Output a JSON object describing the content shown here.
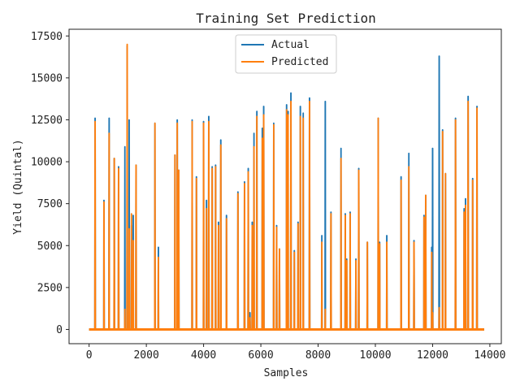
{
  "chart_data": {
    "type": "line",
    "title": "Training Set Prediction",
    "xlabel": "Samples",
    "ylabel": "Yield (Quintal)",
    "xlim": [
      -700,
      14400
    ],
    "ylim": [
      -850,
      17900
    ],
    "xticks": [
      0,
      2000,
      4000,
      6000,
      8000,
      10000,
      12000,
      14000
    ],
    "yticks": [
      0,
      2500,
      5000,
      7500,
      10000,
      12500,
      15000,
      17500
    ],
    "grid": false,
    "legend_placement": "top-center",
    "baseline": 0,
    "series": [
      {
        "name": "Actual",
        "color": "#1f77b4",
        "spikes": [
          [
            210,
            12600
          ],
          [
            520,
            7700
          ],
          [
            700,
            12600
          ],
          [
            880,
            10200
          ],
          [
            1030,
            9700
          ],
          [
            1250,
            10900
          ],
          [
            1330,
            16900
          ],
          [
            1400,
            12500
          ],
          [
            1480,
            6200
          ],
          [
            1540,
            6800
          ],
          [
            1640,
            9800
          ],
          [
            2300,
            12300
          ],
          [
            2420,
            4900
          ],
          [
            3000,
            10400
          ],
          [
            3080,
            12500
          ],
          [
            3130,
            9500
          ],
          [
            3600,
            12500
          ],
          [
            3750,
            9100
          ],
          [
            4000,
            12400
          ],
          [
            4100,
            7700
          ],
          [
            4180,
            12700
          ],
          [
            4300,
            9700
          ],
          [
            4420,
            9800
          ],
          [
            4520,
            6400
          ],
          [
            4600,
            11300
          ],
          [
            4800,
            6800
          ],
          [
            5200,
            8200
          ],
          [
            5430,
            8800
          ],
          [
            5560,
            9600
          ],
          [
            5620,
            1000
          ],
          [
            5700,
            6400
          ],
          [
            5760,
            11700
          ],
          [
            5860,
            13000
          ],
          [
            6050,
            12000
          ],
          [
            6100,
            13300
          ],
          [
            6450,
            12300
          ],
          [
            6550,
            6200
          ],
          [
            6650,
            4800
          ],
          [
            6900,
            13400
          ],
          [
            6950,
            13000
          ],
          [
            7050,
            14100
          ],
          [
            7170,
            4700
          ],
          [
            7300,
            6400
          ],
          [
            7380,
            13300
          ],
          [
            7480,
            12900
          ],
          [
            7700,
            13800
          ],
          [
            8130,
            5600
          ],
          [
            8250,
            13600
          ],
          [
            8450,
            7000
          ],
          [
            8800,
            10800
          ],
          [
            8950,
            6900
          ],
          [
            9000,
            4200
          ],
          [
            9120,
            7000
          ],
          [
            9320,
            4200
          ],
          [
            9420,
            9600
          ],
          [
            9720,
            5200
          ],
          [
            10100,
            12600
          ],
          [
            10150,
            5200
          ],
          [
            10400,
            5600
          ],
          [
            10900,
            9100
          ],
          [
            11170,
            10500
          ],
          [
            11350,
            5300
          ],
          [
            11700,
            6800
          ],
          [
            11760,
            8000
          ],
          [
            11970,
            4900
          ],
          [
            12000,
            10800
          ],
          [
            12230,
            16300
          ],
          [
            12350,
            11900
          ],
          [
            12450,
            9300
          ],
          [
            12800,
            12600
          ],
          [
            13100,
            7200
          ],
          [
            13150,
            7800
          ],
          [
            13240,
            13900
          ],
          [
            13400,
            9000
          ],
          [
            13550,
            13300
          ]
        ]
      },
      {
        "name": "Predicted",
        "color": "#ff7f0e",
        "spikes": [
          [
            210,
            12400
          ],
          [
            520,
            7600
          ],
          [
            700,
            11700
          ],
          [
            880,
            10200
          ],
          [
            1030,
            9600
          ],
          [
            1250,
            1200
          ],
          [
            1330,
            17000
          ],
          [
            1400,
            6000
          ],
          [
            1480,
            6900
          ],
          [
            1540,
            5300
          ],
          [
            1640,
            9800
          ],
          [
            2300,
            12300
          ],
          [
            2420,
            4300
          ],
          [
            3000,
            10400
          ],
          [
            3080,
            12300
          ],
          [
            3130,
            9500
          ],
          [
            3600,
            12400
          ],
          [
            3750,
            9000
          ],
          [
            4000,
            12300
          ],
          [
            4100,
            7200
          ],
          [
            4180,
            12400
          ],
          [
            4300,
            9600
          ],
          [
            4420,
            9700
          ],
          [
            4520,
            6200
          ],
          [
            4600,
            11000
          ],
          [
            4800,
            6600
          ],
          [
            5200,
            8100
          ],
          [
            5430,
            8700
          ],
          [
            5560,
            9400
          ],
          [
            5620,
            700
          ],
          [
            5700,
            6200
          ],
          [
            5760,
            10900
          ],
          [
            5860,
            12700
          ],
          [
            6050,
            11400
          ],
          [
            6100,
            12800
          ],
          [
            6450,
            12200
          ],
          [
            6550,
            6100
          ],
          [
            6650,
            4800
          ],
          [
            6900,
            13100
          ],
          [
            6950,
            12800
          ],
          [
            7050,
            13600
          ],
          [
            7170,
            4600
          ],
          [
            7300,
            6300
          ],
          [
            7380,
            12700
          ],
          [
            7480,
            12600
          ],
          [
            7700,
            13600
          ],
          [
            8130,
            5200
          ],
          [
            8250,
            1200
          ],
          [
            8450,
            6900
          ],
          [
            8800,
            10200
          ],
          [
            8950,
            6800
          ],
          [
            9000,
            4100
          ],
          [
            9120,
            6900
          ],
          [
            9320,
            4100
          ],
          [
            9420,
            9500
          ],
          [
            9720,
            5200
          ],
          [
            10100,
            12600
          ],
          [
            10150,
            5100
          ],
          [
            10400,
            5200
          ],
          [
            10900,
            8900
          ],
          [
            11170,
            9700
          ],
          [
            11350,
            5200
          ],
          [
            11700,
            6700
          ],
          [
            11760,
            8000
          ],
          [
            11970,
            4600
          ],
          [
            12000,
            1000
          ],
          [
            12230,
            1300
          ],
          [
            12350,
            11800
          ],
          [
            12450,
            9300
          ],
          [
            12800,
            12500
          ],
          [
            13100,
            7000
          ],
          [
            13150,
            7400
          ],
          [
            13240,
            13600
          ],
          [
            13400,
            8900
          ],
          [
            13550,
            13200
          ]
        ]
      }
    ]
  }
}
